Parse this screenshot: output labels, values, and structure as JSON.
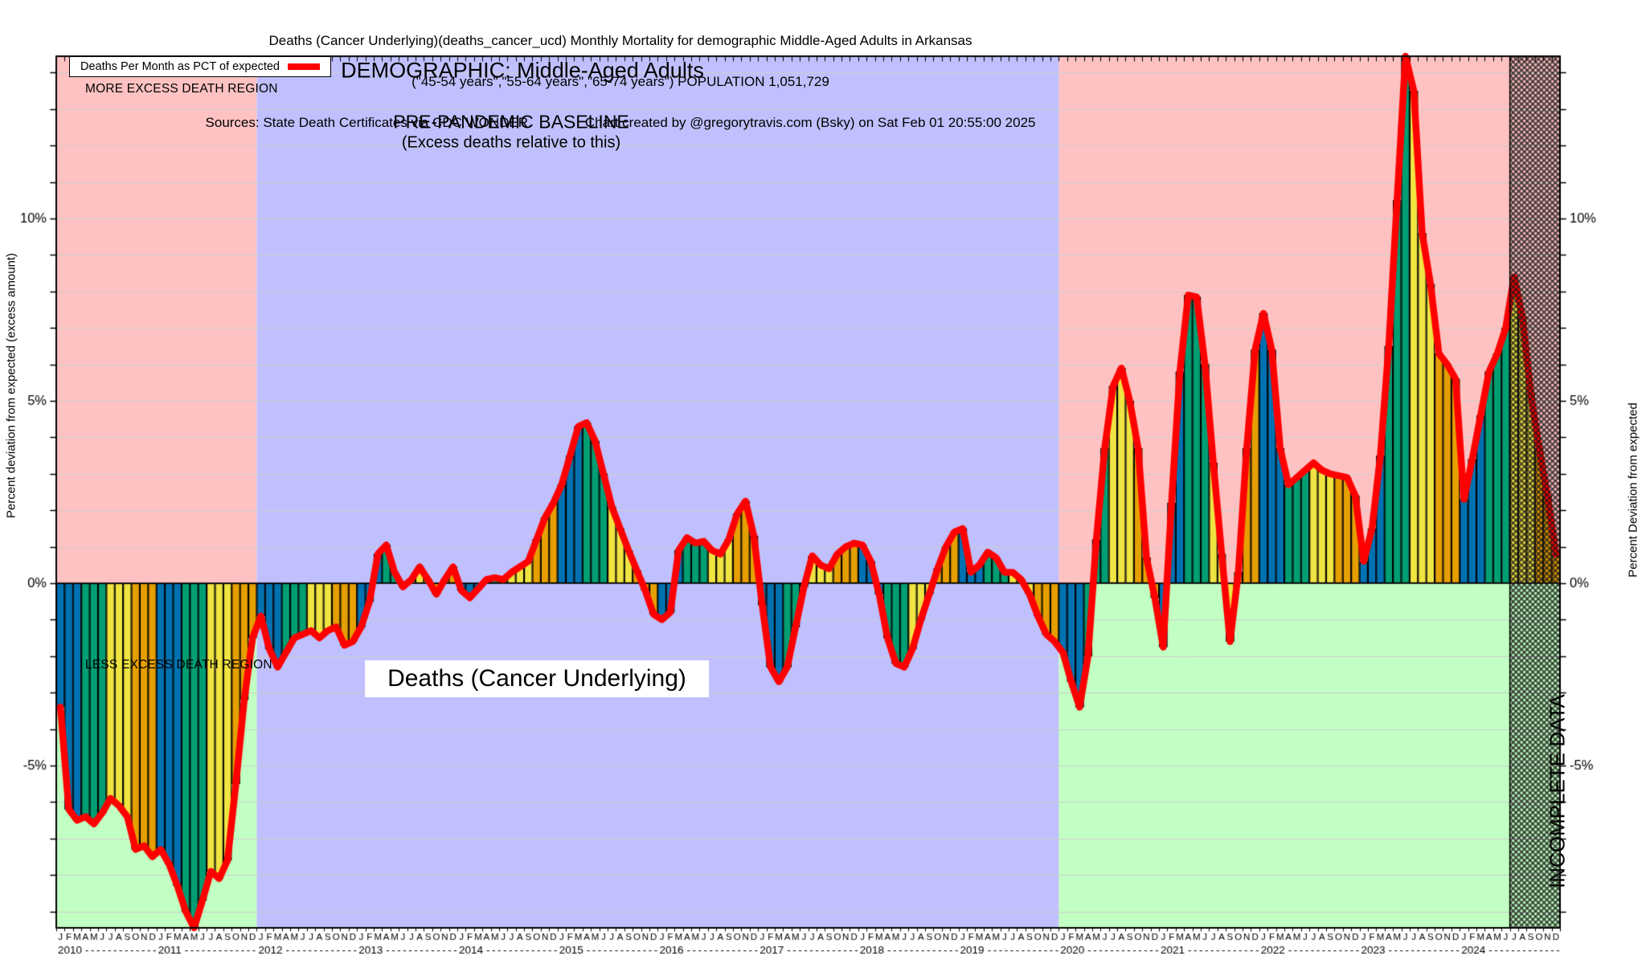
{
  "title": {
    "line1": "Deaths (Cancer Underlying)(deaths_cancer_ucd) Monthly Mortality for demographic Middle-Aged Adults in Arkansas",
    "line2": "(\"45-54 years\",\"55-64 years\",\"65-74 years\") POPULATION 1,051,729",
    "line3": "Sources: State Death Certificates via CDC WONDER.              Chart created by @gregorytravis.com (Bsky) on Sat Feb 01 20:55:00 2025"
  },
  "legend": {
    "label": "Deaths Per Month as PCT of expected",
    "line_color": "#ff0000"
  },
  "annotations": {
    "more_excess": "MORE EXCESS DEATH REGION",
    "less_excess": "LESS EXCESS DEATH REGION",
    "demographic": "DEMOGRAPHIC: Middle-Aged Adults",
    "baseline_line1": "PRE-PANDEMIC BASELINE",
    "baseline_line2": "(Excess deaths relative to this)",
    "bottom_label": "Deaths (Cancer Underlying)",
    "incomplete": "INCOMPLETE DATA"
  },
  "axes": {
    "left_title": "Percent deviation from expected (excess amount)",
    "right_title": "Percent Deviation from expected",
    "y_ticks": [
      {
        "value": 10,
        "label": "10%"
      },
      {
        "value": 5,
        "label": "5%"
      },
      {
        "value": 0,
        "label": "0%"
      },
      {
        "value": -5,
        "label": "-5%"
      }
    ],
    "month_letters": [
      "J",
      "F",
      "M",
      "A",
      "M",
      "J",
      "J",
      "A",
      "S",
      "O",
      "N",
      "D"
    ],
    "years": [
      "2010",
      "2011",
      "2012",
      "2013",
      "2014",
      "2015",
      "2016",
      "2017",
      "2018",
      "2019",
      "2020",
      "2021",
      "2022",
      "2023",
      "2024"
    ]
  },
  "colors": {
    "pink_region": "#ffc2c2",
    "green_region": "#c2ffc2",
    "purple_region": "#c0c0ff",
    "bar_q1": "#0072B2",
    "bar_q2": "#009E73",
    "bar_q3": "#F0E442",
    "bar_q4": "#E69F00",
    "line": "#ff0000",
    "grid": "#cdcdcd"
  },
  "chart_data": {
    "type": "bar",
    "overlay": "line",
    "title": "Deaths (Cancer Underlying) Monthly Mortality, Middle-Aged Adults, Arkansas",
    "ylabel": "Percent deviation from expected (excess amount)",
    "unit": "percent deviation from expected",
    "ylim": [
      -9.45,
      14.45
    ],
    "x_start": "2010-01",
    "x_end": "2024-12",
    "baseline_region": {
      "from": "2012-01",
      "to": "2019-12",
      "label": "PRE-PANDEMIC BASELINE"
    },
    "incomplete_region": {
      "from": "2024-07",
      "to": "2024-12",
      "label": "INCOMPLETE DATA"
    },
    "bar_color_rule": "quarterly: Q1 blue, Q2 teal-green, Q3 yellow, Q4 orange",
    "values_by_year": {
      "2010": [
        -3.4,
        -6.2,
        -6.5,
        -6.4,
        -6.6,
        -6.3,
        -5.9,
        -6.1,
        -6.4,
        -7.3,
        -7.2,
        -7.5
      ],
      "2011": [
        -7.3,
        -7.7,
        -8.3,
        -9.0,
        -9.5,
        -8.7,
        -7.9,
        -8.1,
        -7.6,
        -5.5,
        -3.2,
        -1.5
      ],
      "2012": [
        -0.9,
        -1.8,
        -2.3,
        -1.9,
        -1.5,
        -1.4,
        -1.3,
        -1.5,
        -1.3,
        -1.2,
        -1.7,
        -1.6
      ],
      "2013": [
        -1.2,
        -0.5,
        0.8,
        1.05,
        0.3,
        -0.1,
        0.1,
        0.45,
        0.1,
        -0.3,
        0.1,
        0.45
      ],
      "2014": [
        -0.2,
        -0.4,
        -0.15,
        0.1,
        0.15,
        0.1,
        0.3,
        0.45,
        0.6,
        1.2,
        1.8,
        2.2
      ],
      "2015": [
        2.7,
        3.5,
        4.3,
        4.4,
        3.9,
        3.0,
        2.1,
        1.5,
        0.9,
        0.35,
        -0.2,
        -0.85
      ],
      "2016": [
        -1.0,
        -0.8,
        0.9,
        1.25,
        1.1,
        1.15,
        0.9,
        0.8,
        1.2,
        1.9,
        2.25,
        1.3
      ],
      "2017": [
        -0.6,
        -2.3,
        -2.7,
        -2.3,
        -1.2,
        -0.1,
        0.75,
        0.5,
        0.4,
        0.8,
        1.0,
        1.1
      ],
      "2018": [
        1.05,
        0.6,
        -0.3,
        -1.5,
        -2.2,
        -2.3,
        -1.8,
        -1.0,
        -0.3,
        0.4,
        1.0,
        1.4
      ],
      "2019": [
        1.5,
        0.3,
        0.5,
        0.85,
        0.7,
        0.3,
        0.3,
        0.1,
        -0.3,
        -0.9,
        -1.4,
        -1.6
      ],
      "2020": [
        -1.9,
        -2.7,
        -3.4,
        -2.0,
        1.2,
        3.7,
        5.4,
        5.9,
        5.0,
        3.7,
        0.7,
        -0.4
      ],
      "2021": [
        -1.75,
        2.2,
        5.8,
        7.9,
        7.85,
        6.0,
        3.3,
        0.8,
        -1.6,
        0.3,
        3.7,
        6.4
      ],
      "2022": [
        7.4,
        6.4,
        3.7,
        2.7,
        2.9,
        3.1,
        3.3,
        3.1,
        3.0,
        2.95,
        2.9,
        2.4
      ],
      "2023": [
        0.6,
        1.5,
        3.5,
        6.5,
        10.5,
        14.5,
        13.5,
        9.6,
        8.2,
        6.3,
        6.0,
        5.6
      ],
      "2024": [
        2.3,
        3.4,
        4.6,
        5.8,
        6.3,
        7.0,
        8.4,
        7.3,
        5.2,
        3.7,
        2.4,
        0.8
      ]
    }
  }
}
